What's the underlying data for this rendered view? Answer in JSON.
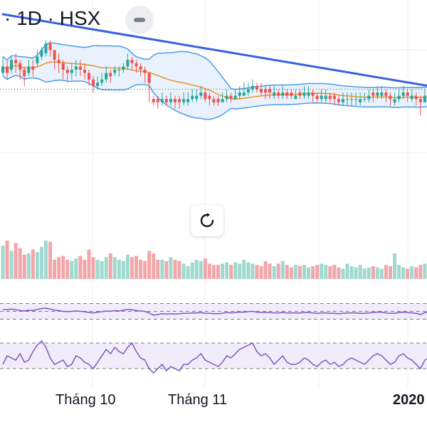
{
  "header": {
    "title": "· 1D · HSX"
  },
  "x_axis_labels": [
    {
      "text": "Tháng 10",
      "bold": false
    },
    {
      "text": "Tháng 11",
      "bold": false
    },
    {
      "text": "2020",
      "bold": true
    }
  ],
  "colors": {
    "up": "#26a69a",
    "down": "#ef5350",
    "up_volume": "#9fd9cf",
    "down_volume": "#f2a7aa",
    "bollinger": "#4a9be8",
    "bollinger_fill": "#e9f2fc",
    "ma": "#f0902a",
    "trendline": "#3a5fe0",
    "oscillator": "#7e57c2",
    "oscillator_fill": "#f1ecfa",
    "grid": "#eeeeee"
  },
  "icons": {
    "collapse": "minus-icon",
    "reset": "reset-icon"
  },
  "chart_data": {
    "type": "candlestick",
    "x": [
      "t1",
      "t2",
      "t3",
      "t4",
      "t5",
      "t6",
      "t7",
      "t8",
      "t9",
      "t10",
      "t11",
      "t12",
      "t13",
      "t14",
      "t15",
      "t16",
      "t17",
      "t18",
      "t19",
      "t20",
      "t21",
      "t22",
      "t23",
      "t24",
      "t25",
      "t26",
      "t27",
      "t28",
      "t29",
      "t30",
      "t31",
      "t32",
      "t33",
      "t34",
      "t35",
      "t36",
      "t37",
      "t38",
      "t39",
      "t40",
      "t41",
      "t42",
      "t43",
      "t44",
      "t45",
      "t46",
      "t47",
      "t48",
      "t49",
      "t50",
      "t51",
      "t52",
      "t53",
      "t54",
      "t55",
      "t56",
      "t57",
      "t58",
      "t59",
      "t60",
      "t61",
      "t62",
      "t63",
      "t64",
      "t65",
      "t66",
      "t67",
      "t68",
      "t69",
      "t70",
      "t71",
      "t72",
      "t73",
      "t74",
      "t75",
      "t76",
      "t77",
      "t78",
      "t79",
      "t80",
      "t81",
      "t82",
      "t83",
      "t84",
      "t85",
      "t86",
      "t87",
      "t88",
      "t89",
      "t90",
      "t91",
      "t92",
      "t93",
      "t94",
      "t95",
      "t96",
      "t97",
      "t98",
      "t99",
      "t100"
    ],
    "close": [
      72,
      70,
      74,
      73,
      71,
      69,
      72,
      71,
      75,
      77,
      79,
      77,
      74,
      73,
      71,
      70,
      71,
      72,
      71,
      70,
      68,
      66,
      67,
      68,
      70,
      69,
      71,
      71,
      72,
      74,
      73,
      72,
      71,
      70,
      67,
      61,
      61,
      62,
      61,
      62,
      61,
      61,
      62,
      62,
      63,
      63,
      64,
      62,
      62,
      61,
      61,
      62,
      63,
      62,
      63,
      64,
      64,
      65,
      66,
      65,
      64,
      64,
      64,
      64,
      63,
      64,
      63,
      63,
      63,
      63,
      64,
      64,
      63,
      62,
      63,
      63,
      62,
      62,
      61,
      62,
      62,
      62,
      62,
      62,
      62,
      63,
      63,
      64,
      64,
      63,
      62,
      62,
      63,
      64,
      63,
      63,
      62,
      61,
      63,
      63
    ],
    "high": [
      75,
      74,
      75,
      76,
      74,
      72,
      74,
      74,
      77,
      78,
      80,
      80,
      77,
      76,
      74,
      72,
      73,
      74,
      74,
      73,
      71,
      69,
      69,
      70,
      72,
      71,
      72,
      72,
      73,
      76,
      75,
      74,
      73,
      72,
      70,
      63,
      63,
      64,
      63,
      64,
      63,
      63,
      64,
      64,
      65,
      65,
      66,
      65,
      64,
      63,
      63,
      64,
      65,
      64,
      65,
      66,
      67,
      67,
      68,
      67,
      67,
      66,
      66,
      66,
      65,
      66,
      65,
      65,
      65,
      65,
      66,
      66,
      65,
      64,
      65,
      65,
      64,
      64,
      63,
      64,
      64,
      64,
      64,
      64,
      64,
      65,
      65,
      66,
      66,
      65,
      64,
      64,
      65,
      66,
      65,
      65,
      64,
      63,
      65,
      65
    ],
    "low": [
      69,
      68,
      70,
      70,
      68,
      66,
      69,
      69,
      72,
      74,
      75,
      75,
      71,
      70,
      68,
      67,
      68,
      69,
      69,
      68,
      66,
      64,
      65,
      66,
      67,
      67,
      69,
      69,
      70,
      71,
      71,
      70,
      69,
      67,
      61,
      60,
      59,
      60,
      60,
      60,
      59,
      59,
      60,
      60,
      61,
      61,
      62,
      61,
      60,
      60,
      60,
      61,
      61,
      61,
      62,
      62,
      63,
      63,
      64,
      64,
      63,
      62,
      62,
      62,
      62,
      62,
      62,
      62,
      62,
      62,
      62,
      62,
      61,
      61,
      61,
      61,
      61,
      60,
      60,
      60,
      60,
      60,
      60,
      60,
      61,
      61,
      61,
      62,
      62,
      61,
      60,
      60,
      61,
      62,
      61,
      61,
      60,
      57,
      61,
      62
    ],
    "open": [
      70,
      72,
      71,
      74,
      73,
      71,
      70,
      72,
      73,
      75,
      76,
      79,
      77,
      74,
      73,
      71,
      70,
      71,
      72,
      71,
      70,
      68,
      66,
      67,
      68,
      70,
      70,
      71,
      71,
      72,
      74,
      73,
      72,
      71,
      70,
      62,
      62,
      61,
      62,
      61,
      62,
      62,
      61,
      61,
      62,
      62,
      63,
      64,
      63,
      62,
      62,
      61,
      62,
      63,
      62,
      63,
      63,
      64,
      65,
      66,
      65,
      65,
      65,
      63,
      64,
      63,
      64,
      64,
      62,
      64,
      63,
      63,
      64,
      63,
      62,
      62,
      63,
      63,
      62,
      61,
      62,
      62,
      62,
      61,
      62,
      62,
      64,
      63,
      63,
      64,
      63,
      61,
      62,
      63,
      64,
      62,
      63,
      62,
      61,
      62
    ],
    "volume": [
      52,
      60,
      44,
      56,
      48,
      38,
      40,
      46,
      42,
      50,
      60,
      58,
      30,
      34,
      36,
      30,
      28,
      32,
      36,
      30,
      46,
      34,
      30,
      28,
      34,
      40,
      34,
      30,
      28,
      38,
      34,
      36,
      30,
      28,
      44,
      40,
      30,
      30,
      28,
      34,
      30,
      28,
      24,
      20,
      26,
      30,
      28,
      32,
      24,
      22,
      22,
      24,
      26,
      22,
      26,
      24,
      30,
      26,
      24,
      22,
      20,
      28,
      24,
      20,
      24,
      28,
      22,
      18,
      22,
      20,
      22,
      18,
      20,
      22,
      24,
      22,
      20,
      22,
      18,
      16,
      24,
      20,
      18,
      22,
      16,
      18,
      20,
      18,
      16,
      22,
      20,
      40,
      22,
      18,
      16,
      20,
      18,
      22,
      24,
      20
    ],
    "ylim": [
      40,
      88
    ],
    "volume_ylim": [
      0,
      80
    ],
    "oscillator1": [
      55,
      54,
      56,
      54,
      52,
      51,
      53,
      52,
      55,
      57,
      58,
      56,
      53,
      52,
      50,
      49,
      50,
      51,
      50,
      49,
      47,
      46,
      48,
      49,
      51,
      50,
      52,
      51,
      53,
      55,
      54,
      52,
      51,
      50,
      46,
      40,
      42,
      44,
      43,
      44,
      43,
      44,
      45,
      45,
      46,
      46,
      47,
      45,
      45,
      44,
      44,
      45,
      47,
      46,
      47,
      48,
      48,
      49,
      50,
      48,
      47,
      47,
      47,
      46,
      46,
      47,
      46,
      46,
      46,
      46,
      47,
      47,
      46,
      45,
      46,
      46,
      45,
      45,
      44,
      45,
      46,
      46,
      46,
      45,
      45,
      46,
      47,
      48,
      48,
      46,
      45,
      45,
      47,
      48,
      47,
      46,
      45,
      42,
      47,
      47
    ],
    "oscillator1_levels": [
      70,
      50,
      30
    ],
    "oscillator2": [
      30,
      50,
      45,
      40,
      55,
      35,
      40,
      60,
      75,
      85,
      70,
      45,
      30,
      35,
      40,
      25,
      30,
      50,
      45,
      35,
      30,
      20,
      35,
      50,
      65,
      55,
      70,
      60,
      55,
      70,
      80,
      60,
      45,
      40,
      20,
      10,
      20,
      30,
      15,
      25,
      20,
      15,
      30,
      30,
      40,
      45,
      55,
      40,
      35,
      30,
      25,
      35,
      50,
      45,
      55,
      65,
      70,
      75,
      80,
      60,
      50,
      55,
      45,
      30,
      40,
      50,
      35,
      30,
      30,
      35,
      45,
      40,
      30,
      25,
      35,
      40,
      30,
      35,
      25,
      30,
      40,
      45,
      40,
      35,
      30,
      40,
      50,
      55,
      50,
      40,
      30,
      35,
      50,
      55,
      45,
      40,
      30,
      20,
      40,
      45
    ],
    "oscillator2_levels": [
      80,
      20
    ],
    "series": [
      {
        "name": "",
        "type": "bollinger_upper"
      },
      {
        "name": "",
        "type": "bollinger_lower"
      },
      {
        "name": "",
        "type": "moving_average"
      }
    ],
    "trendline": {
      "from": {
        "x": "t1",
        "y": 88
      },
      "to": {
        "x": "t100",
        "y": 66
      }
    },
    "price_line": 65
  }
}
